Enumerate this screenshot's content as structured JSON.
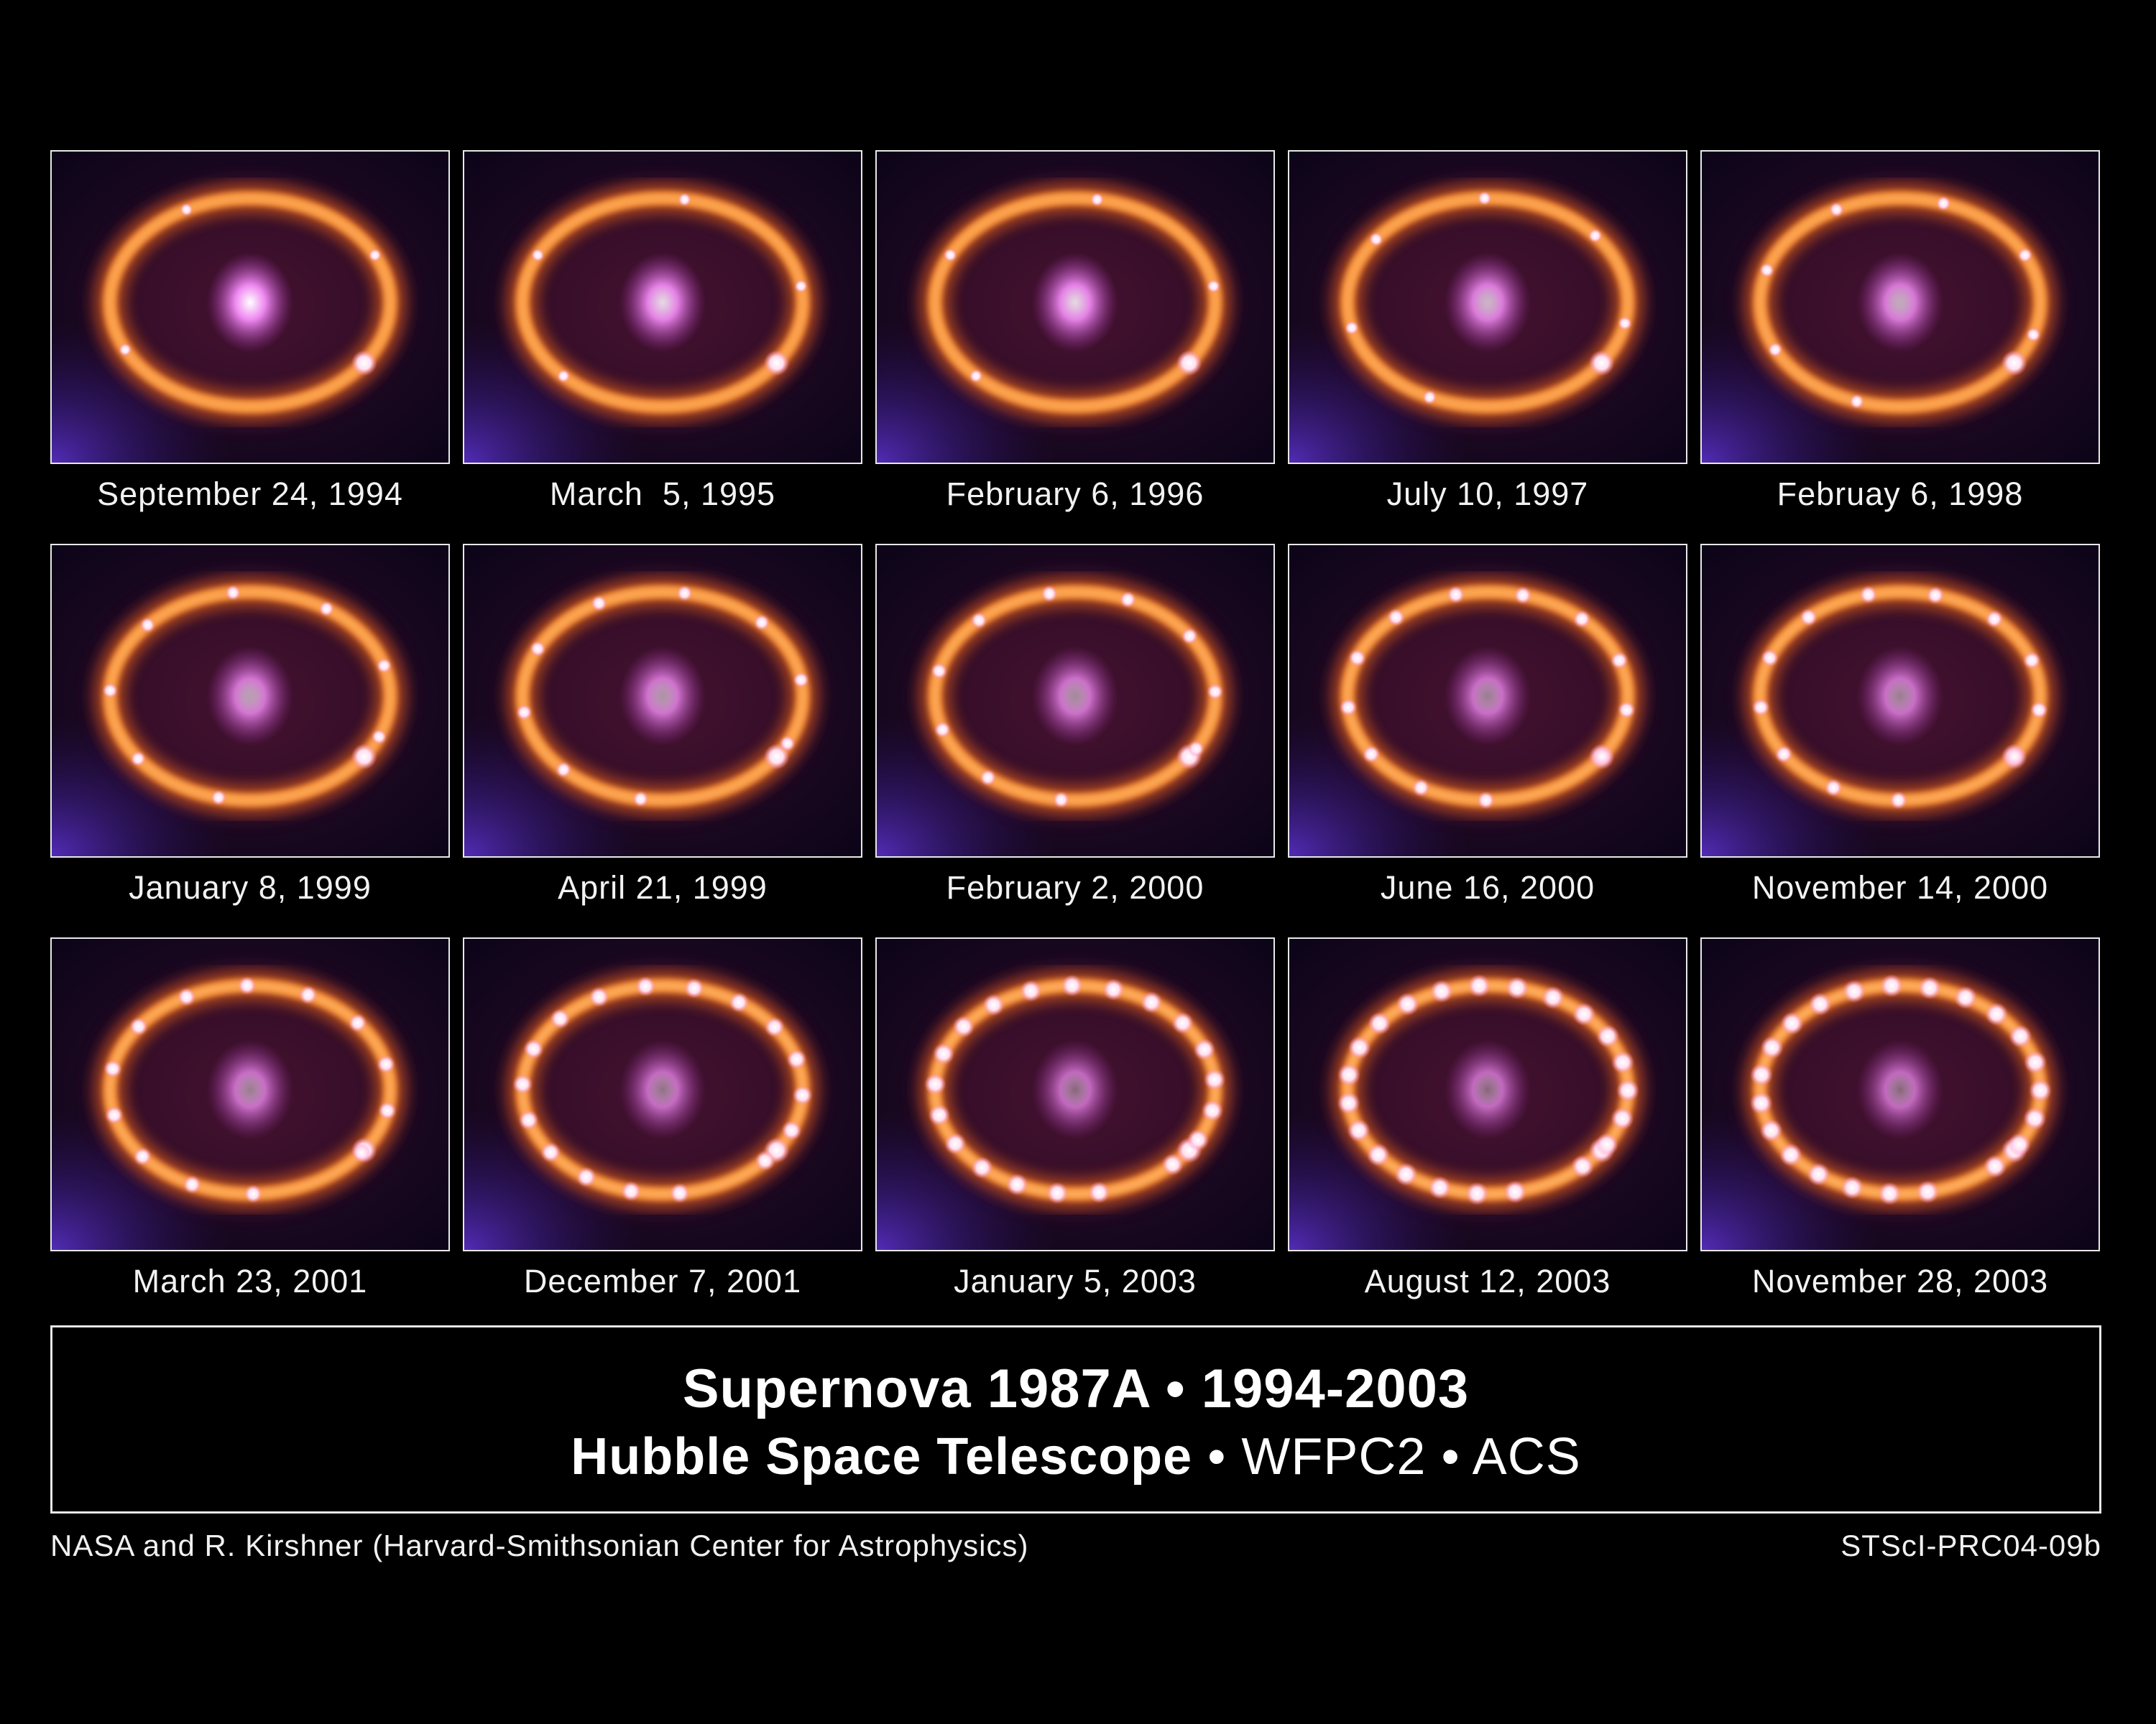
{
  "panels": [
    {
      "date": "September 24, 1994",
      "ring_brightness": 0.15,
      "core_brightness": 1.0
    },
    {
      "date": "March  5, 1995",
      "ring_brightness": 0.18,
      "core_brightness": 0.85
    },
    {
      "date": "February 6, 1996",
      "ring_brightness": 0.2,
      "core_brightness": 0.85
    },
    {
      "date": "July 10, 1997",
      "ring_brightness": 0.25,
      "core_brightness": 0.7
    },
    {
      "date": "Februay 6, 1998",
      "ring_brightness": 0.3,
      "core_brightness": 0.65
    },
    {
      "date": "January 8, 1999",
      "ring_brightness": 0.35,
      "core_brightness": 0.6
    },
    {
      "date": "April 21, 1999",
      "ring_brightness": 0.4,
      "core_brightness": 0.55
    },
    {
      "date": "February 2, 2000",
      "ring_brightness": 0.45,
      "core_brightness": 0.5
    },
    {
      "date": "June 16, 2000",
      "ring_brightness": 0.55,
      "core_brightness": 0.45
    },
    {
      "date": "November 14, 2000",
      "ring_brightness": 0.55,
      "core_brightness": 0.45
    },
    {
      "date": "March 23, 2001",
      "ring_brightness": 0.6,
      "core_brightness": 0.45
    },
    {
      "date": "December 7, 2001",
      "ring_brightness": 0.75,
      "core_brightness": 0.4
    },
    {
      "date": "January 5, 2003",
      "ring_brightness": 0.9,
      "core_brightness": 0.35
    },
    {
      "date": "August 12, 2003",
      "ring_brightness": 1.0,
      "core_brightness": 0.35
    },
    {
      "date": "November 28, 2003",
      "ring_brightness": 1.0,
      "core_brightness": 0.35
    }
  ],
  "title": {
    "line1": "Supernova 1987A • 1994-2003",
    "line2_bold": "Hubble Space Telescope",
    "line2_rest": " • WFPC2 • ACS"
  },
  "credit_left": "NASA and R. Kirshner (Harvard-Smithsonian Center for Astrophysics)",
  "credit_right": "STScI-PRC04-09b",
  "colors": {
    "background": "#000000",
    "ring": "#ff9a3c",
    "core": "#e070e8",
    "hotspot": "#ffffff",
    "frame": "#e8e8e8"
  }
}
